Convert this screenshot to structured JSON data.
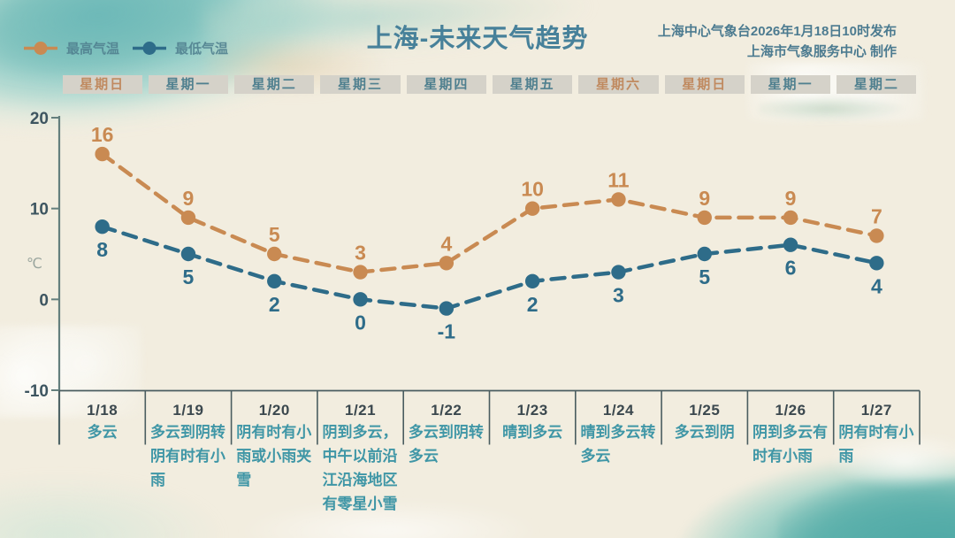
{
  "title": "上海-未来天气趋势",
  "attribution": {
    "line1": "上海中心气象台2026年1月18日10时发布",
    "line2": "上海市气象服务中心 制作"
  },
  "legend": {
    "high_label": "最高气温",
    "low_label": "最低气温"
  },
  "y_axis": {
    "unit": "℃",
    "ticks": [
      20,
      10,
      0,
      -10
    ]
  },
  "colors": {
    "high": "#c98a52",
    "low": "#2e6c89",
    "weekend_text": "#c08a60",
    "weekday_text": "#50808f",
    "weekday_box_bg": "#d5d2c9",
    "axis": "#647f7d",
    "grid": "#4a5d60",
    "tick_text": "#3d5560",
    "unit_text": "#9aa59e",
    "date_text": "#3b484e",
    "desc_text": "#3f96a6",
    "title_text": "#47819a",
    "attribution_text": "#4c7b90"
  },
  "chart_data": {
    "type": "line",
    "title": "上海-未来天气趋势",
    "ylabel": "℃",
    "ylim": [
      -10,
      20
    ],
    "weekdays": [
      "星期日",
      "星期一",
      "星期二",
      "星期三",
      "星期四",
      "星期五",
      "星期六",
      "星期日",
      "星期一",
      "星期二"
    ],
    "weekend_flags": [
      true,
      false,
      false,
      false,
      false,
      false,
      true,
      true,
      false,
      false
    ],
    "categories": [
      "1/18",
      "1/19",
      "1/20",
      "1/21",
      "1/22",
      "1/23",
      "1/24",
      "1/25",
      "1/26",
      "1/27"
    ],
    "series": [
      {
        "name": "最高气温",
        "values": [
          16,
          9,
          5,
          3,
          4,
          10,
          11,
          9,
          9,
          7
        ]
      },
      {
        "name": "最低气温",
        "values": [
          8,
          5,
          2,
          0,
          -1,
          2,
          3,
          5,
          6,
          4
        ]
      }
    ],
    "descriptions": [
      "多云",
      "多云到阴转阴有时有小雨",
      "阴有时有小雨或小雨夹雪",
      "阴到多云，中午以前沿江沿海地区有零星小雪",
      "多云到阴转多云",
      "晴到多云",
      "晴到多云转多云",
      "多云到阴",
      "阴到多云有时有小雨",
      "阴有时有小雨"
    ]
  }
}
